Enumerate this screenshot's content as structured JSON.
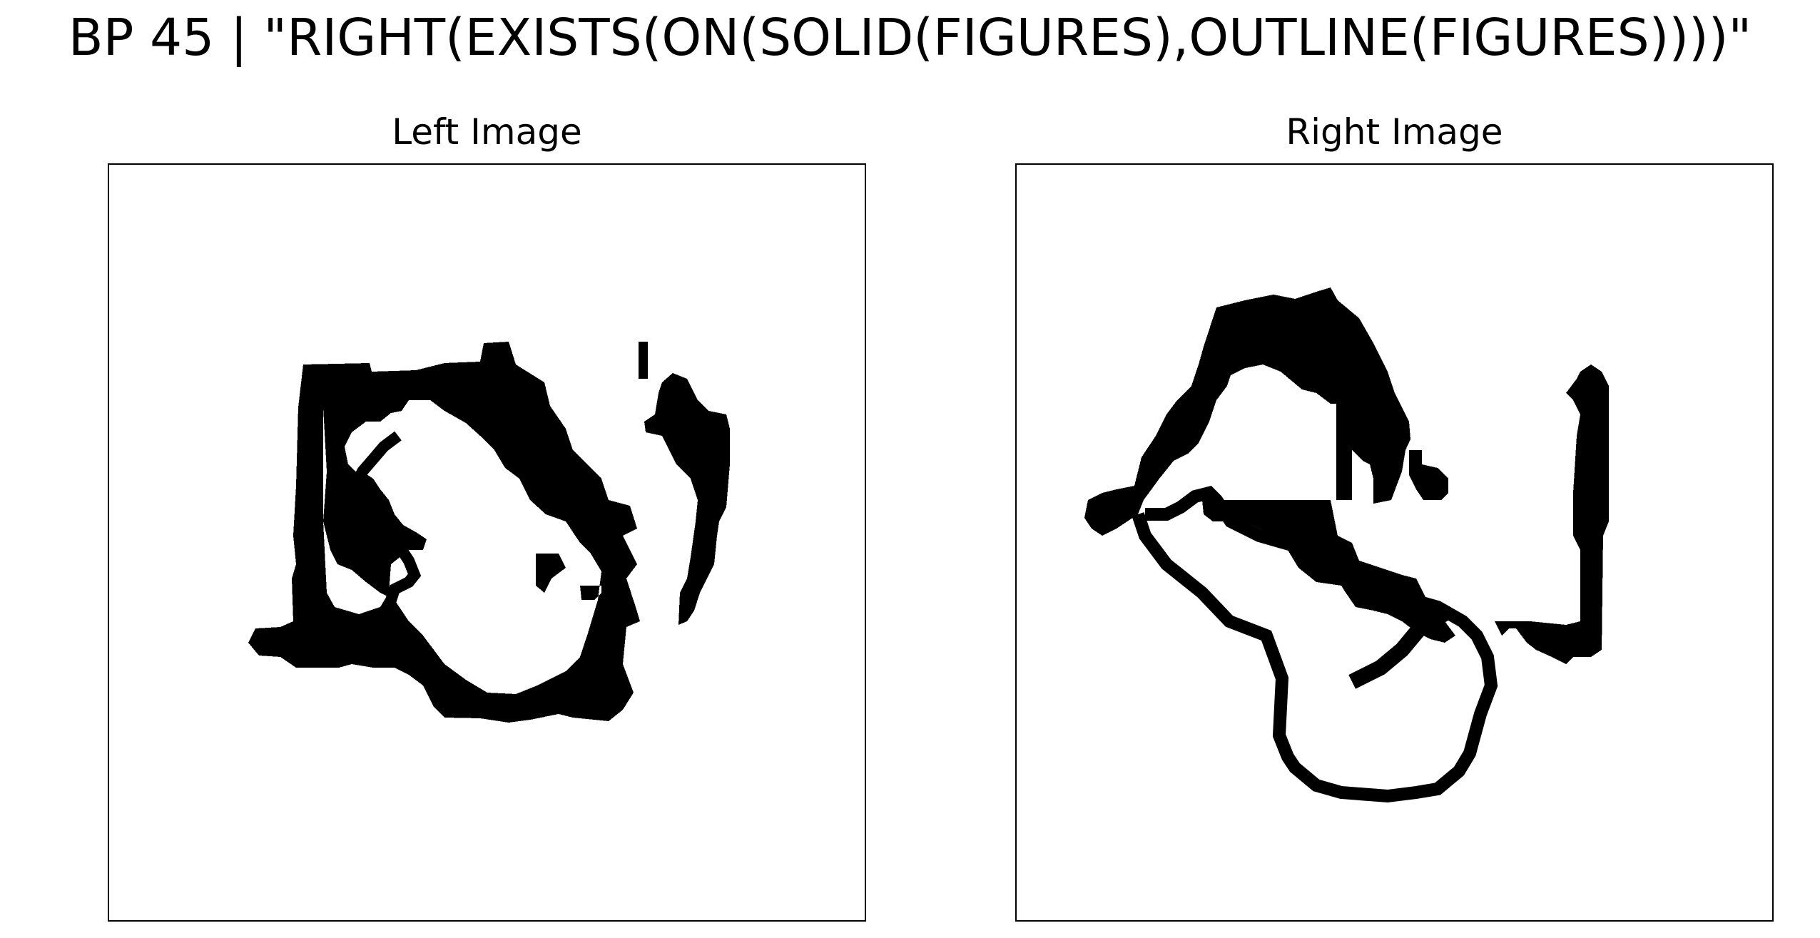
{
  "figure": {
    "title": "BP 45 | \"RIGHT(EXISTS(ON(SOLID(FIGURES),OUTLINE(FIGURES))))\""
  },
  "panels": [
    {
      "title": "Left Image"
    },
    {
      "title": "Right Image"
    }
  ],
  "colors": {
    "ink": "#000000",
    "background": "#ffffff"
  }
}
